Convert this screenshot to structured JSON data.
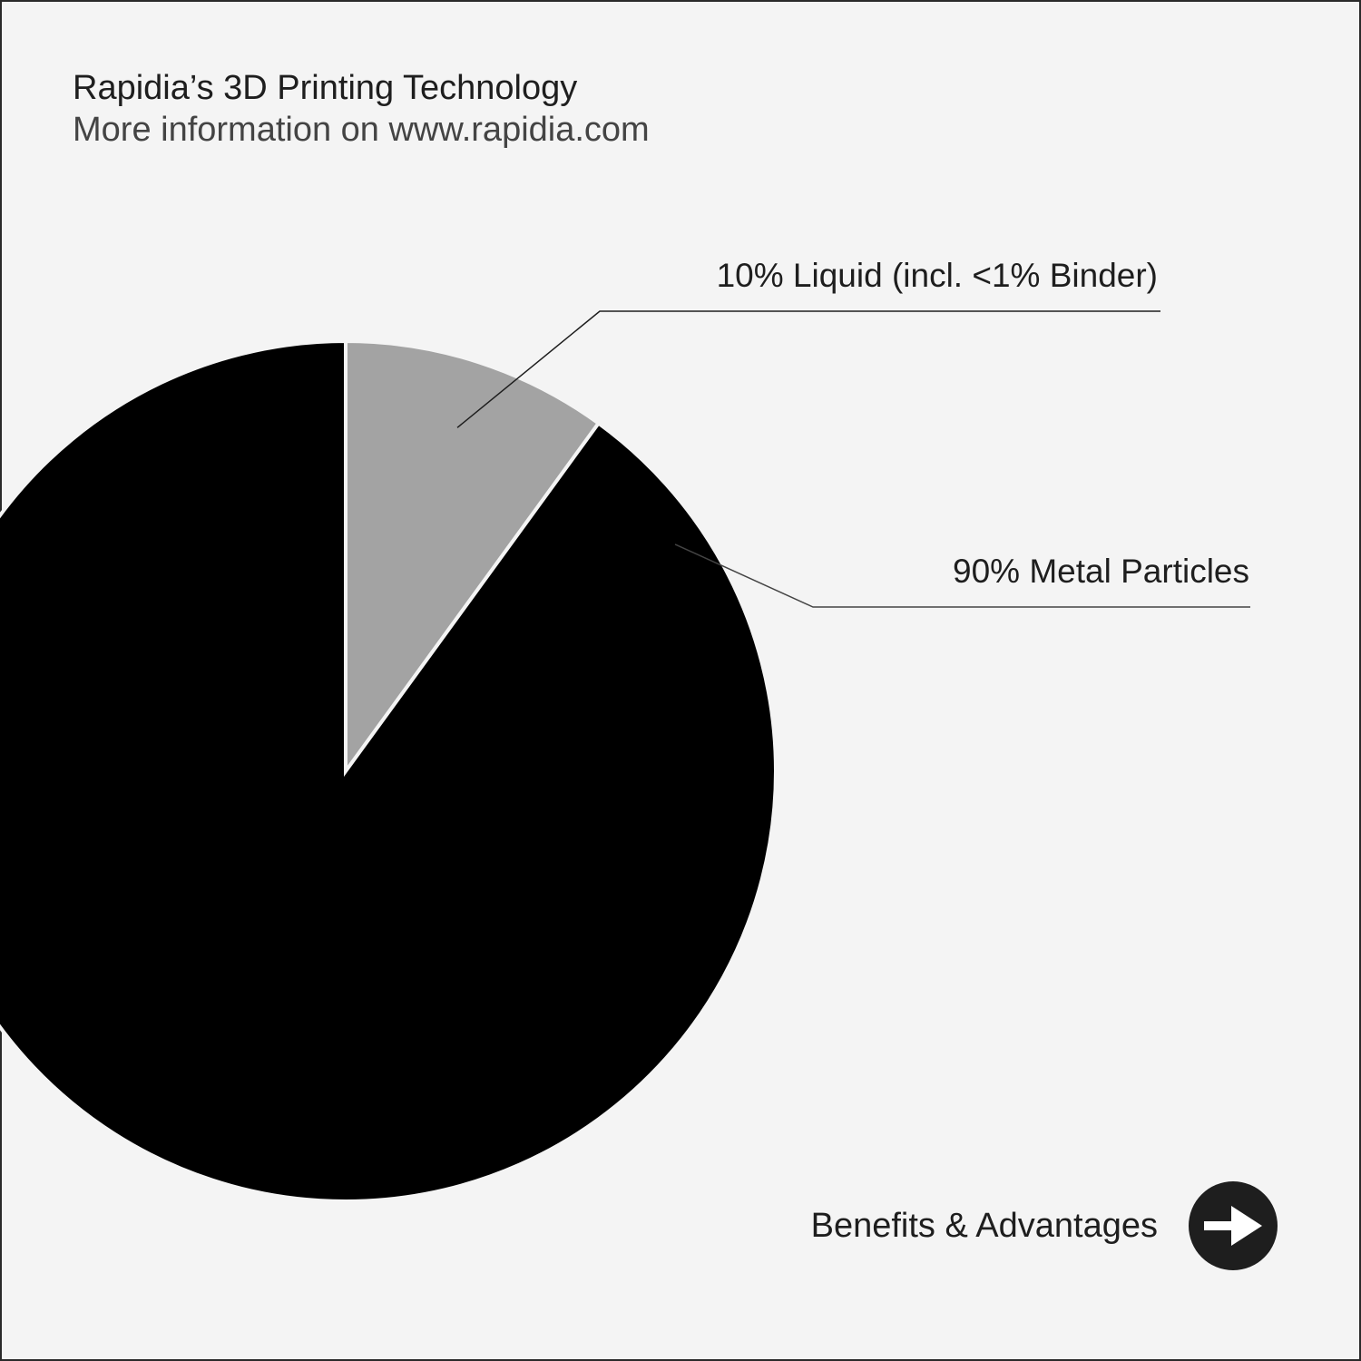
{
  "header": {
    "title": "Rapidia’s 3D Printing Technology",
    "subtitle": "More information on www.rapidia.com"
  },
  "chart_data": {
    "type": "pie",
    "title": "Rapidia’s 3D Printing Technology",
    "subtitle": "More information on www.rapidia.com",
    "start_angle": "12 o'clock, clockwise",
    "slices": [
      {
        "label": "10% Liquid (incl. <1% Binder)",
        "value": 10,
        "color": "#a3a3a3"
      },
      {
        "label": "90% Metal Particles",
        "value": 90,
        "color": "#000000"
      }
    ],
    "legend": "none (callout labels)"
  },
  "cta": {
    "label": "Benefits & Advantages",
    "icon": "arrow-right-icon"
  },
  "colors": {
    "background": "#f4f4f4",
    "text": "#1e1e1e",
    "button": "#1e1e1e"
  }
}
